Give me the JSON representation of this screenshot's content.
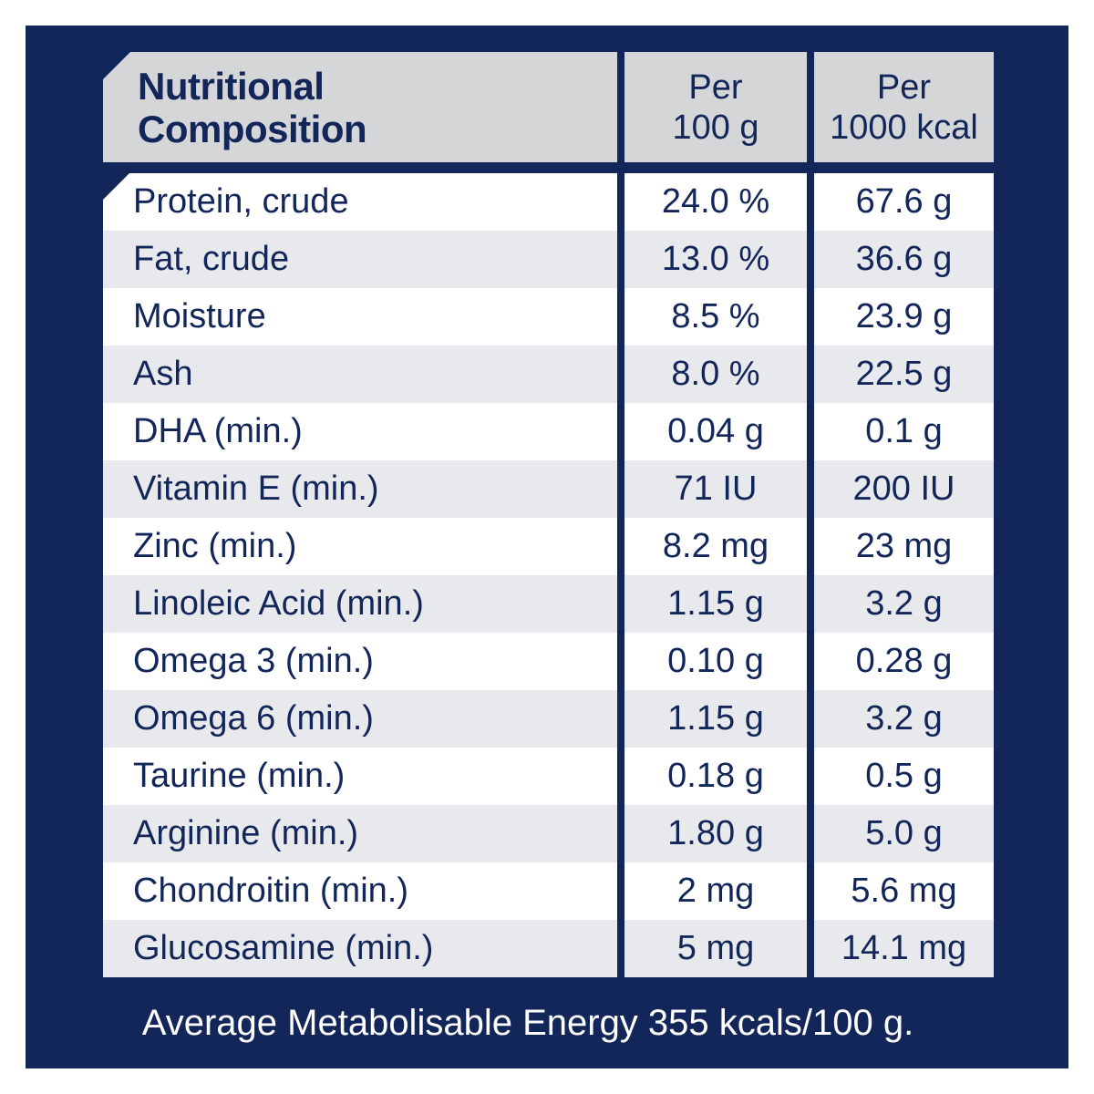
{
  "colors": {
    "panel_navy": "#13265a",
    "header_gray": "#d5d6d8",
    "row_alt_gray": "#e8e9ec",
    "row_white": "#ffffff",
    "text_navy": "#13265a",
    "footer_text": "#ffffff"
  },
  "header": {
    "title_line1": "Nutritional",
    "title_line2": "Composition",
    "col_per_100g_line1": "Per",
    "col_per_100g_line2": "100 g",
    "col_per_1000kcal_line1": "Per",
    "col_per_1000kcal_line2": "1000 kcal"
  },
  "rows": [
    {
      "name": "Protein, crude",
      "per_100g": "24.0 %",
      "per_1000kcal": "67.6 g"
    },
    {
      "name": "Fat, crude",
      "per_100g": "13.0 %",
      "per_1000kcal": "36.6 g"
    },
    {
      "name": "Moisture",
      "per_100g": "8.5 %",
      "per_1000kcal": "23.9 g"
    },
    {
      "name": "Ash",
      "per_100g": "8.0 %",
      "per_1000kcal": "22.5 g"
    },
    {
      "name": "DHA (min.)",
      "per_100g": "0.04 g",
      "per_1000kcal": "0.1 g"
    },
    {
      "name": "Vitamin E (min.)",
      "per_100g": "71 IU",
      "per_1000kcal": "200 IU"
    },
    {
      "name": "Zinc (min.)",
      "per_100g": "8.2 mg",
      "per_1000kcal": "23 mg"
    },
    {
      "name": "Linoleic Acid (min.)",
      "per_100g": "1.15 g",
      "per_1000kcal": "3.2 g"
    },
    {
      "name": "Omega 3 (min.)",
      "per_100g": "0.10 g",
      "per_1000kcal": "0.28 g"
    },
    {
      "name": "Omega 6 (min.)",
      "per_100g": "1.15 g",
      "per_1000kcal": "3.2 g"
    },
    {
      "name": "Taurine (min.)",
      "per_100g": "0.18 g",
      "per_1000kcal": "0.5 g"
    },
    {
      "name": "Arginine (min.)",
      "per_100g": "1.80 g",
      "per_1000kcal": "5.0 g"
    },
    {
      "name": "Chondroitin (min.)",
      "per_100g": "2 mg",
      "per_1000kcal": "5.6 mg"
    },
    {
      "name": "Glucosamine (min.)",
      "per_100g": "5 mg",
      "per_1000kcal": "14.1 mg"
    }
  ],
  "footer": {
    "text": "Average Metabolisable Energy 355 kcals/100 g."
  }
}
